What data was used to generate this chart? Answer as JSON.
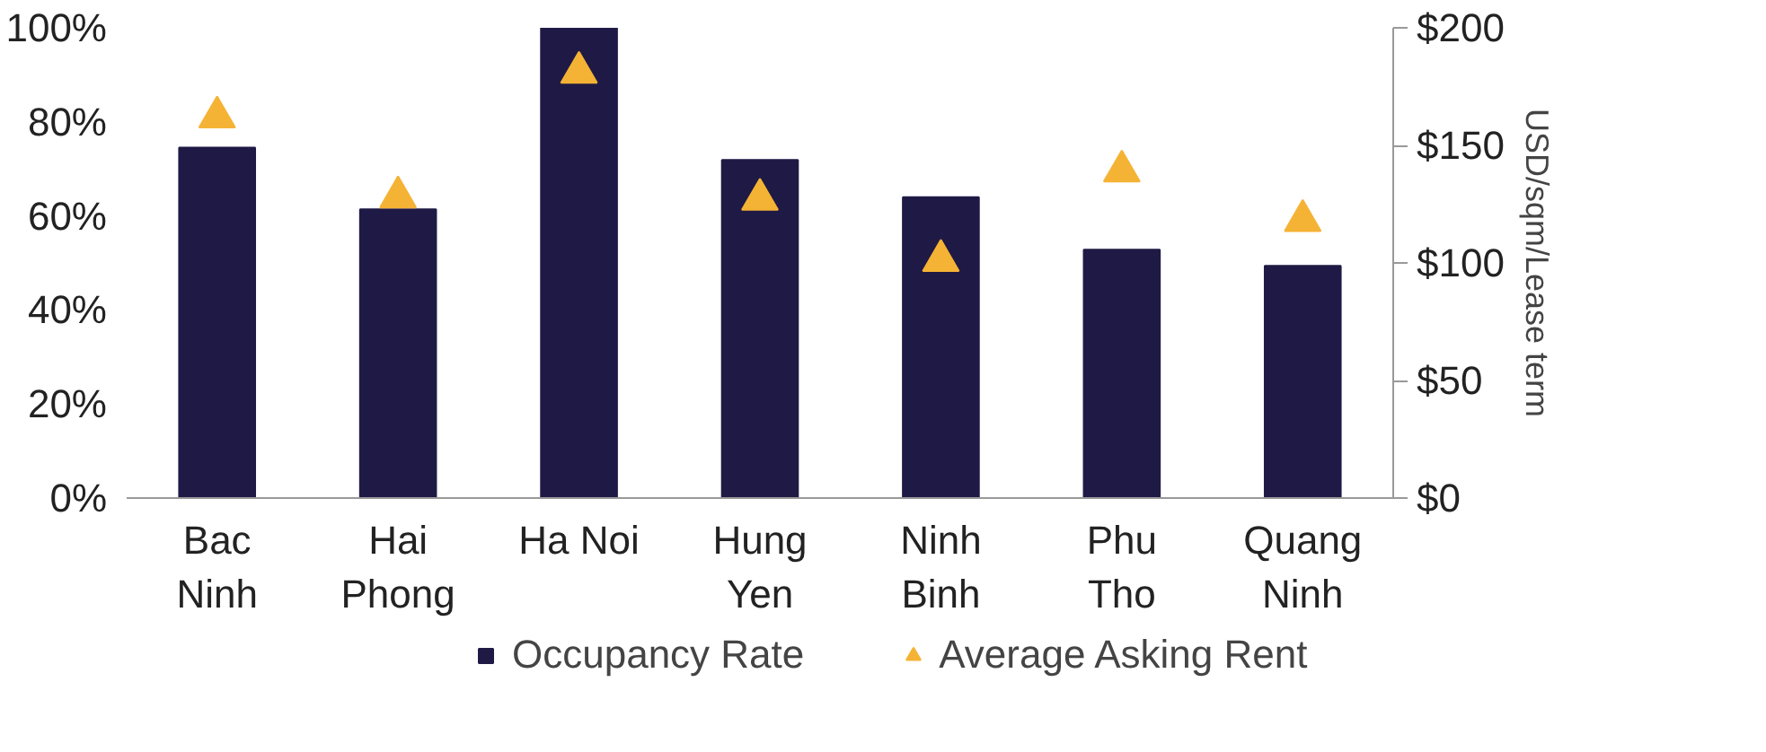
{
  "chart_data": {
    "type": "bar",
    "categories": [
      "Bac Ninh",
      "Hai Phong",
      "Ha Noi",
      "Hung Yen",
      "Ninh Binh",
      "Phu Tho",
      "Quang Ninh"
    ],
    "series": [
      {
        "name": "Occupancy Rate",
        "color": "#1f1a45",
        "values": [
          0.745,
          0.614,
          1.0,
          0.719,
          0.64,
          0.528,
          0.494
        ]
      },
      {
        "name": "Average Asking Rent",
        "type": "scatter",
        "axis": "y2",
        "marker": "triangle",
        "color": "#f5b335",
        "values": [
          162,
          128,
          181,
          127,
          101,
          139,
          118
        ]
      }
    ],
    "ylim": [
      0,
      1
    ],
    "yticks": [
      {
        "value": 0,
        "label": "0%"
      },
      {
        "value": 0.2,
        "label": "20%"
      },
      {
        "value": 0.4,
        "label": "40%"
      },
      {
        "value": 0.6,
        "label": "60%"
      },
      {
        "value": 0.8,
        "label": "80%"
      },
      {
        "value": 1,
        "label": "100%"
      }
    ],
    "y2lim": [
      0,
      200
    ],
    "y2ticks": [
      {
        "value": 0,
        "label": "$0"
      },
      {
        "value": 50,
        "label": "$50"
      },
      {
        "value": 100,
        "label": "$100"
      },
      {
        "value": 150,
        "label": "$150"
      },
      {
        "value": 200,
        "label": "$200"
      }
    ],
    "y2label": "USD/sqm/Lease term",
    "legend": "bottom",
    "grid": false
  }
}
